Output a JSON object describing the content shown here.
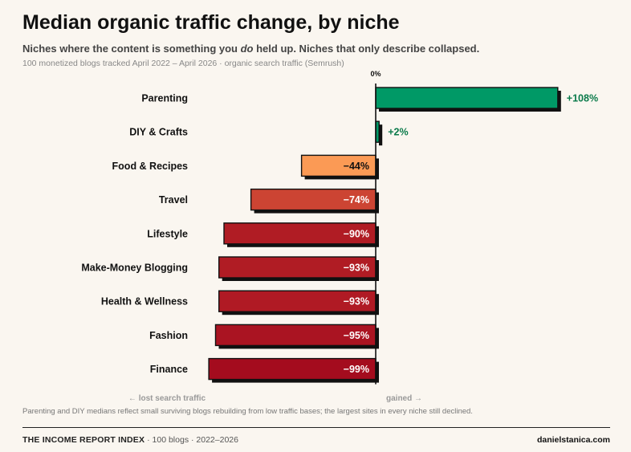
{
  "header": {
    "title": "Median organic traffic change, by niche",
    "subtitle_before": "Niches where the content is something you ",
    "subtitle_emphasis": "do",
    "subtitle_after": " held up. Niches that only describe collapsed.",
    "source": "100 monetized blogs tracked April 2022 – April 2026 · organic search traffic (Semrush)"
  },
  "chart_data": {
    "type": "bar",
    "orientation": "horizontal",
    "zero_label": "0%",
    "categories": [
      "Parenting",
      "DIY & Crafts",
      "Food & Recipes",
      "Travel",
      "Lifestyle",
      "Make-Money Blogging",
      "Health & Wellness",
      "Fashion",
      "Finance"
    ],
    "values": [
      108,
      2,
      -44,
      -74,
      -90,
      -93,
      -93,
      -95,
      -99
    ],
    "value_labels": [
      "+108%",
      "+2%",
      "−44%",
      "−74%",
      "−90%",
      "−93%",
      "−93%",
      "−95%",
      "−99%"
    ],
    "colors": [
      "#009966",
      "#009966",
      "#fb9a55",
      "#cc4433",
      "#b01c24",
      "#b01c24",
      "#b01a24",
      "#aa1422",
      "#a40c1e"
    ],
    "xlim": [
      -100,
      110
    ],
    "negative_axis_label": "← lost search traffic",
    "positive_axis_label": "gained →",
    "grid": false,
    "legend": "none"
  },
  "footnote": "Parenting and DIY medians reflect small surviving blogs rebuilding from low traffic bases; the largest sites in every niche still declined.",
  "footer": {
    "brand": "THE INCOME REPORT INDEX",
    "meta": " · 100 blogs · 2022–2026",
    "site": "danielstanica.com"
  }
}
